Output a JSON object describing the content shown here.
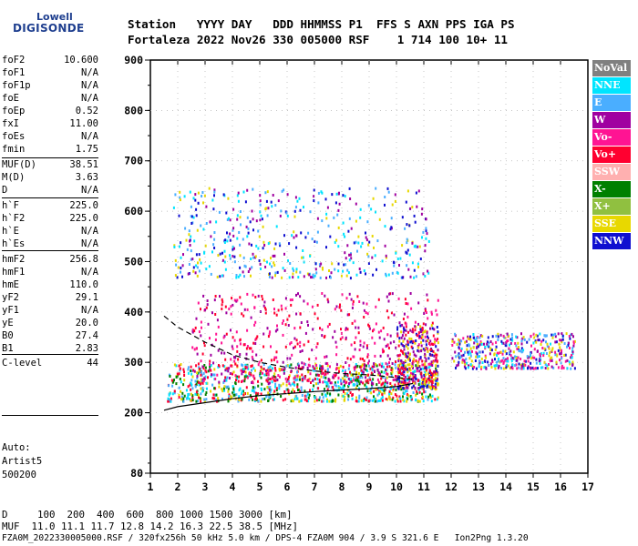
{
  "logo": {
    "top": "Lowell",
    "bottom": "DIGISONDE"
  },
  "header": {
    "line1": "Station   YYYY DAY   DDD HHMMSS P1  FFS S AXN PPS IGA PS",
    "line2": "Fortaleza 2022 Nov26 330 005000 RSF    1 714 100 10+ 11"
  },
  "params": [
    {
      "name": "foF2",
      "value": "10.600"
    },
    {
      "name": "foF1",
      "value": "N/A"
    },
    {
      "name": "foF1p",
      "value": "N/A"
    },
    {
      "name": "foE",
      "value": "N/A"
    },
    {
      "name": "foEp",
      "value": "0.52"
    },
    {
      "name": "fxI",
      "value": "11.00"
    },
    {
      "name": "foEs",
      "value": "N/A"
    },
    {
      "name": "fmin",
      "value": "1.75"
    },
    {
      "name": "MUF(D)",
      "value": "38.51"
    },
    {
      "name": "M(D)",
      "value": "3.63"
    },
    {
      "name": "D",
      "value": "N/A"
    },
    {
      "name": "h`F",
      "value": "225.0"
    },
    {
      "name": "h`F2",
      "value": "225.0"
    },
    {
      "name": "h`E",
      "value": "N/A"
    },
    {
      "name": "h`Es",
      "value": "N/A"
    },
    {
      "name": "hmF2",
      "value": "256.8"
    },
    {
      "name": "hmF1",
      "value": "N/A"
    },
    {
      "name": "hmE",
      "value": "110.0"
    },
    {
      "name": "yF2",
      "value": "29.1"
    },
    {
      "name": "yF1",
      "value": "N/A"
    },
    {
      "name": "yE",
      "value": "20.0"
    },
    {
      "name": "B0",
      "value": "27.4"
    },
    {
      "name": "B1",
      "value": "2.83"
    },
    {
      "name": "C-level",
      "value": "44"
    }
  ],
  "auto": {
    "label": "Auto:",
    "system": "Artist5",
    "version": "500200"
  },
  "legend": [
    {
      "label": "NoVal",
      "color": "#808080"
    },
    {
      "label": "NNE",
      "color": "#00e5ff"
    },
    {
      "label": "E",
      "color": "#4aaeff"
    },
    {
      "label": "W",
      "color": "#a000a0"
    },
    {
      "label": "Vo-",
      "color": "#ff1493"
    },
    {
      "label": "Vo+",
      "color": "#ff0030"
    },
    {
      "label": "SSW",
      "color": "#ffb0b0"
    },
    {
      "label": "X-",
      "color": "#008000"
    },
    {
      "label": "X+",
      "color": "#90c040"
    },
    {
      "label": "SSE",
      "color": "#e8d800"
    },
    {
      "label": "NNW",
      "color": "#1010d0"
    }
  ],
  "footer": {
    "line1": "D     100  200  400  600  800 1000 1500 3000 [km]",
    "line2": "MUF  11.0 11.1 11.7 12.8 14.2 16.3 22.5 38.5 [MHz]",
    "line3": "FZA0M_2022330005000.RSF / 320fx256h 50 kHz 5.0 km / DPS-4 FZA0M 904 / 3.9 S 321.6 E   Ion2Png 1.3.20"
  },
  "chart_data": {
    "type": "scatter",
    "title": "",
    "xlabel": "",
    "ylabel": "",
    "xlim": [
      1,
      17
    ],
    "ylim": [
      80,
      900
    ],
    "x_ticks": [
      1,
      2,
      3,
      4,
      5,
      6,
      7,
      8,
      9,
      10,
      11,
      12,
      13,
      14,
      15,
      16,
      17
    ],
    "y_ticks": [
      80,
      200,
      300,
      400,
      500,
      600,
      700,
      800,
      900
    ],
    "clusters": [
      {
        "name": "O-trace F layer",
        "x_range": [
          1.6,
          11.5
        ],
        "y_range": [
          225,
          300
        ],
        "colors": [
          "#ff0030",
          "#4aaeff",
          "#00e5ff",
          "#e8d800",
          "#008000"
        ],
        "n": 900
      },
      {
        "name": "spread F",
        "x_range": [
          2.5,
          11.5
        ],
        "y_range": [
          260,
          440
        ],
        "colors": [
          "#a000a0",
          "#ff0030",
          "#ff1493"
        ],
        "n": 600
      },
      {
        "name": "dense F upper",
        "x_range": [
          10,
          11.5
        ],
        "y_range": [
          250,
          380
        ],
        "colors": [
          "#ff0030",
          "#a000a0",
          "#1010d0",
          "#e8d800"
        ],
        "n": 300
      },
      {
        "name": "second hop",
        "x_range": [
          1.8,
          11.2
        ],
        "y_range": [
          470,
          650
        ],
        "colors": [
          "#4aaeff",
          "#00e5ff",
          "#e8d800",
          "#1010d0",
          "#a000a0"
        ],
        "n": 500
      },
      {
        "name": "oblique",
        "x_range": [
          12,
          16.5
        ],
        "y_range": [
          290,
          360
        ],
        "colors": [
          "#00e5ff",
          "#4aaeff",
          "#ff1493",
          "#a000a0",
          "#e8d800",
          "#1010d0"
        ],
        "n": 450
      }
    ],
    "curves": [
      {
        "name": "solid profile",
        "style": "solid",
        "points": [
          [
            1.5,
            205
          ],
          [
            2,
            212
          ],
          [
            3,
            220
          ],
          [
            4,
            228
          ],
          [
            5,
            234
          ],
          [
            6,
            238
          ],
          [
            7,
            242
          ],
          [
            8,
            245
          ],
          [
            9,
            248
          ],
          [
            10,
            252
          ],
          [
            10.6,
            258
          ]
        ]
      },
      {
        "name": "dashed model",
        "style": "dashed",
        "points": [
          [
            1.5,
            392
          ],
          [
            2,
            370
          ],
          [
            3,
            340
          ],
          [
            4,
            315
          ],
          [
            5,
            300
          ],
          [
            6,
            290
          ],
          [
            7,
            283
          ],
          [
            8,
            278
          ],
          [
            9,
            275
          ],
          [
            10,
            270
          ],
          [
            10.6,
            266
          ]
        ]
      }
    ]
  }
}
